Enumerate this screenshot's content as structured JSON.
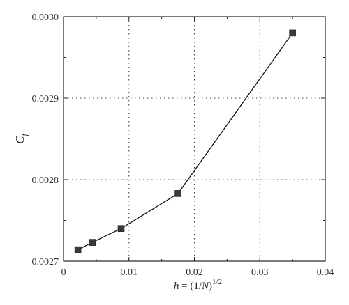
{
  "chart_data": {
    "type": "line",
    "title": "",
    "xlabel": "h = (1/N)^{1/2}",
    "ylabel": "C_f",
    "xlim": [
      0,
      0.04
    ],
    "ylim": [
      0.0027,
      0.003
    ],
    "x_ticks": [
      "0",
      "0.01",
      "0.02",
      "0.03",
      "0.04"
    ],
    "y_ticks": [
      "0.0027",
      "0.0028",
      "0.0029",
      "0.0030"
    ],
    "grid": "dotted",
    "marker": "square",
    "series": [
      {
        "x": [
          0.0022,
          0.0044,
          0.0088,
          0.0175,
          0.035
        ],
        "y": [
          0.002714,
          0.002723,
          0.00274,
          0.002783,
          0.00298
        ]
      }
    ]
  },
  "axis_text": {
    "x_prefix": "h = (1/",
    "x_var": "N",
    "x_close": ")",
    "x_exp": "1/2",
    "y_main": "C",
    "y_sub": "f"
  },
  "colors": {
    "axis": "#222222",
    "grid": "#444444",
    "line": "#111111",
    "marker": "#3a3a3a"
  }
}
